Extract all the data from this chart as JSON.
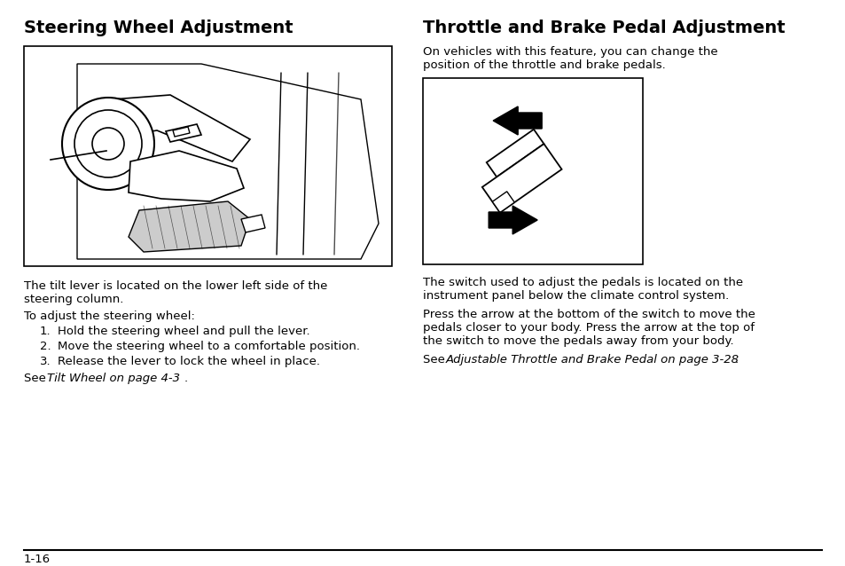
{
  "bg_color": "#ffffff",
  "left_title": "Steering Wheel Adjustment",
  "right_title": "Throttle and Brake Pedal Adjustment",
  "left_body1": "The tilt lever is located on the lower left side of the",
  "left_body2": "steering column.",
  "left_list_intro": "To adjust the steering wheel:",
  "left_list": [
    "Hold the steering wheel and pull the lever.",
    "Move the steering wheel to a comfortable position.",
    "Release the lever to lock the wheel in place."
  ],
  "left_see_normal": "See ",
  "left_see_italic": "Tilt Wheel on page 4-3",
  "left_see_end": ".",
  "right_body1a": "On vehicles with this feature, you can change the",
  "right_body1b": "position of the throttle and brake pedals.",
  "right_body2a": "The switch used to adjust the pedals is located on the",
  "right_body2b": "instrument panel below the climate control system.",
  "right_body3a": "Press the arrow at the bottom of the switch to move the",
  "right_body3b": "pedals closer to your body. Press the arrow at the top of",
  "right_body3c": "the switch to move the pedals away from your body.",
  "right_see_normal": "See ",
  "right_see_italic": "Adjustable Throttle and Brake Pedal on page 3-28",
  "right_see_end": ".",
  "page_number": "1-16",
  "title_fontsize": 14,
  "body_fontsize": 9.5
}
